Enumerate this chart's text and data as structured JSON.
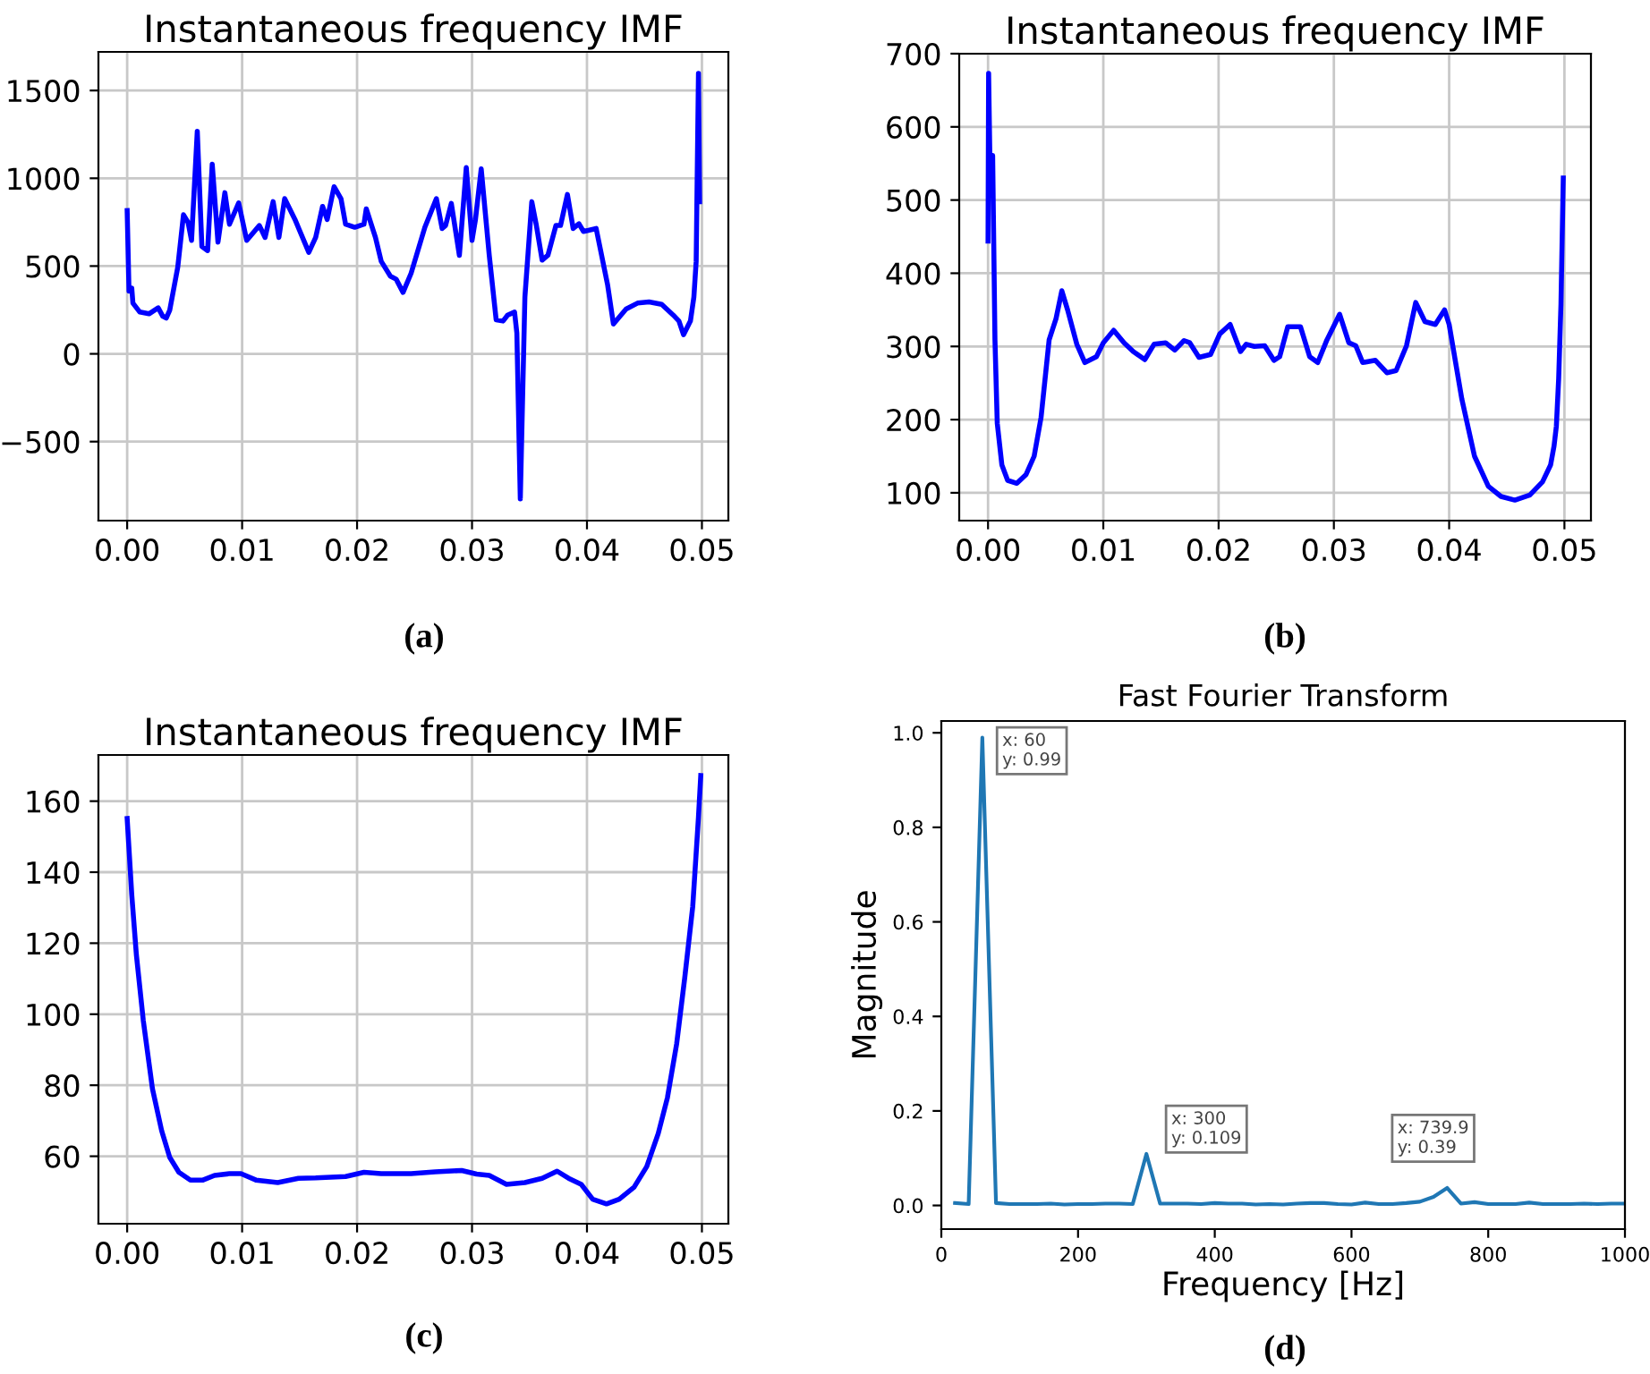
{
  "chart_data": [
    {
      "type": "line",
      "title": "Instantaneous frequency IMF",
      "annotations": [
        "(a)"
      ],
      "grid": true,
      "xlim": [
        -0.0025,
        0.0523
      ],
      "ylim": [
        -950,
        1720
      ],
      "xticks": [
        {
          "value": 0,
          "label": "0.00"
        },
        {
          "value": 0.01,
          "label": "0.01"
        },
        {
          "value": 0.02,
          "label": "0.02"
        },
        {
          "value": 0.03,
          "label": "0.03"
        },
        {
          "value": 0.04,
          "label": "0.04"
        },
        {
          "value": 0.05,
          "label": "0.05"
        }
      ],
      "yticks": [
        {
          "value": -500,
          "label": "−500"
        },
        0,
        500,
        1000,
        1500
      ],
      "series": [
        {
          "color": "#0000ff",
          "x": [
            0,
            0.00016,
            0.0004,
            0.0005,
            0.0011,
            0.0019,
            0.0027,
            0.0031,
            0.0034,
            0.0037,
            0.0044,
            0.0049,
            0.0053,
            0.0056,
            0.0061,
            0.0065,
            0.007,
            0.0074,
            0.0079,
            0.0085,
            0.0089,
            0.0097,
            0.0104,
            0.0115,
            0.012,
            0.0127,
            0.0132,
            0.0137,
            0.0146,
            0.0158,
            0.0164,
            0.017,
            0.0174,
            0.018,
            0.0186,
            0.019,
            0.0198,
            0.0206,
            0.0208,
            0.0216,
            0.0221,
            0.0229,
            0.0234,
            0.024,
            0.0247,
            0.0259,
            0.0269,
            0.0274,
            0.0277,
            0.0282,
            0.0289,
            0.0295,
            0.03,
            0.0303,
            0.0308,
            0.0315,
            0.0321,
            0.0327,
            0.0331,
            0.0337,
            0.0339,
            0.0342,
            0.0346,
            0.0352,
            0.0356,
            0.0361,
            0.0366,
            0.0373,
            0.0377,
            0.0383,
            0.0388,
            0.0393,
            0.0397,
            0.0408,
            0.0418,
            0.0423,
            0.0434,
            0.0444,
            0.0454,
            0.0465,
            0.0475,
            0.048,
            0.0484,
            0.049,
            0.0493,
            0.0495,
            0.0497,
            0.0498
          ],
          "values": [
            816,
            357,
            374,
            289,
            238,
            228,
            262,
            214,
            204,
            248,
            493,
            792,
            748,
            646,
            1268,
            612,
            588,
            1081,
            636,
            918,
            738,
            860,
            646,
            731,
            663,
            867,
            663,
            884,
            765,
            578,
            663,
            840,
            765,
            952,
            884,
            738,
            721,
            738,
            826,
            663,
            527,
            442,
            425,
            350,
            459,
            721,
            884,
            714,
            731,
            857,
            561,
            1061,
            646,
            765,
            1054,
            561,
            194,
            187,
            221,
            238,
            119,
            -826,
            323,
            867,
            731,
            534,
            561,
            731,
            731,
            908,
            714,
            741,
            697,
            714,
            391,
            170,
            255,
            289,
            296,
            282,
            221,
            187,
            109,
            187,
            323,
            527,
            1598,
            867
          ]
        }
      ]
    },
    {
      "type": "line",
      "title": "Instantaneous frequency IMF",
      "annotations": [
        "(b)"
      ],
      "grid": true,
      "xlim": [
        -0.0025,
        0.0523
      ],
      "ylim": [
        62,
        700
      ],
      "xticks": [
        {
          "value": 0,
          "label": "0.00"
        },
        {
          "value": 0.01,
          "label": "0.01"
        },
        {
          "value": 0.02,
          "label": "0.02"
        },
        {
          "value": 0.03,
          "label": "0.03"
        },
        {
          "value": 0.04,
          "label": "0.04"
        },
        {
          "value": 0.05,
          "label": "0.05"
        }
      ],
      "yticks": [
        100,
        200,
        300,
        400,
        500,
        600,
        700
      ],
      "series": [
        {
          "color": "#0000ff",
          "x": [
            0,
            5e-05,
            0.0002,
            0.0004,
            0.0006,
            0.0008,
            0.0012,
            0.0017,
            0.0025,
            0.0033,
            0.004,
            0.0046,
            0.0053,
            0.0059,
            0.0064,
            0.0069,
            0.0077,
            0.0084,
            0.0094,
            0.01,
            0.0109,
            0.0118,
            0.0126,
            0.0136,
            0.0144,
            0.0154,
            0.0162,
            0.017,
            0.0175,
            0.0183,
            0.0193,
            0.0201,
            0.021,
            0.0219,
            0.0224,
            0.0231,
            0.024,
            0.0248,
            0.0253,
            0.026,
            0.0271,
            0.0279,
            0.0286,
            0.0294,
            0.0305,
            0.0313,
            0.0319,
            0.0325,
            0.0336,
            0.0346,
            0.0354,
            0.0363,
            0.0371,
            0.0379,
            0.0388,
            0.0396,
            0.04,
            0.0411,
            0.0422,
            0.0434,
            0.0445,
            0.0457,
            0.047,
            0.0481,
            0.0488,
            0.0491,
            0.0493,
            0.0495,
            0.0497,
            0.0499
          ],
          "values": [
            444,
            673,
            514,
            561,
            309,
            195,
            138,
            117,
            113,
            125,
            150,
            203,
            309,
            338,
            376,
            350,
            303,
            278,
            286,
            305,
            322,
            305,
            293,
            282,
            303,
            305,
            295,
            308,
            305,
            285,
            289,
            317,
            330,
            293,
            303,
            300,
            301,
            281,
            286,
            327,
            327,
            286,
            278,
            309,
            344,
            305,
            301,
            278,
            281,
            264,
            267,
            301,
            360,
            334,
            330,
            350,
            330,
            228,
            150,
            109,
            95,
            90,
            97,
            115,
            138,
            164,
            191,
            256,
            358,
            530
          ]
        }
      ]
    },
    {
      "type": "line",
      "title": "Instantaneous frequency IMF",
      "annotations": [
        "(c)"
      ],
      "grid": true,
      "xlim": [
        -0.0025,
        0.0523
      ],
      "ylim": [
        41,
        173
      ],
      "xticks": [
        {
          "value": 0,
          "label": "0.00"
        },
        {
          "value": 0.01,
          "label": "0.01"
        },
        {
          "value": 0.02,
          "label": "0.02"
        },
        {
          "value": 0.03,
          "label": "0.03"
        },
        {
          "value": 0.04,
          "label": "0.04"
        },
        {
          "value": 0.05,
          "label": "0.05"
        }
      ],
      "yticks": [
        60,
        80,
        100,
        120,
        140,
        160
      ],
      "series": [
        {
          "color": "#0000ff",
          "x": [
            0,
            0.0004,
            0.0008,
            0.0014,
            0.0022,
            0.003,
            0.0037,
            0.0045,
            0.0055,
            0.0066,
            0.0076,
            0.0089,
            0.0099,
            0.0112,
            0.0131,
            0.0149,
            0.0164,
            0.019,
            0.0206,
            0.0221,
            0.0247,
            0.0268,
            0.0291,
            0.0304,
            0.0315,
            0.033,
            0.0346,
            0.0361,
            0.0374,
            0.0384,
            0.0395,
            0.0405,
            0.0417,
            0.0428,
            0.0441,
            0.0452,
            0.0462,
            0.047,
            0.0478,
            0.0485,
            0.0492,
            0.0497,
            0.0499
          ],
          "values": [
            155.1,
            133.6,
            116.8,
            98.3,
            79.0,
            67.2,
            59.7,
            55.5,
            53.3,
            53.3,
            54.6,
            55.1,
            55.1,
            53.3,
            52.6,
            53.8,
            53.9,
            54.3,
            55.5,
            55.1,
            55.1,
            55.6,
            56.0,
            55.0,
            54.6,
            52.1,
            52.6,
            53.8,
            55.8,
            53.8,
            52.1,
            47.9,
            46.6,
            47.9,
            51.3,
            57.1,
            66.4,
            76.5,
            91.6,
            110.1,
            130.3,
            155.5,
            167.2
          ]
        }
      ]
    },
    {
      "type": "line",
      "title": "Fast Fourier Transform",
      "xlabel": "Frequency [Hz]",
      "ylabel": "Magnitude",
      "grid": false,
      "xlim": [
        0,
        1000
      ],
      "ylim": [
        -0.05,
        1.025
      ],
      "xticks": [
        0,
        200,
        400,
        600,
        800,
        1000
      ],
      "yticks": [
        {
          "value": 0,
          "label": "0.0"
        },
        {
          "value": 0.2,
          "label": "0.2"
        },
        {
          "value": 0.4,
          "label": "0.4"
        },
        {
          "value": 0.6,
          "label": "0.6"
        },
        {
          "value": 0.8,
          "label": "0.8"
        },
        {
          "value": 1,
          "label": "1.0"
        }
      ],
      "annotations": [
        {
          "text": "x: 60\ny: 0.99",
          "x": 60,
          "y": 0.99
        },
        {
          "text": "x: 300\ny: 0.109",
          "x": 300,
          "y": 0.109
        },
        {
          "text": "x: 739.9\ny: 0.39",
          "x": 739.9,
          "y": 0.037
        },
        "(d)"
      ],
      "series": [
        {
          "color": "#1f77b4",
          "x": [
            20,
            40,
            60,
            80,
            100,
            120,
            140,
            160,
            180,
            200,
            220,
            240,
            260,
            280,
            300,
            320,
            340,
            360,
            380,
            400,
            420,
            440,
            460,
            480,
            500,
            520,
            540,
            560,
            580,
            600,
            620,
            640,
            660,
            680,
            700,
            720,
            740,
            760,
            780,
            800,
            820,
            840,
            860,
            880,
            900,
            920,
            940,
            960,
            980,
            1000
          ],
          "values": [
            0.005,
            0.003,
            0.99,
            0.005,
            0.003,
            0.003,
            0.003,
            0.004,
            0.002,
            0.003,
            0.003,
            0.004,
            0.004,
            0.003,
            0.109,
            0.004,
            0.004,
            0.004,
            0.003,
            0.005,
            0.004,
            0.004,
            0.002,
            0.003,
            0.002,
            0.004,
            0.005,
            0.005,
            0.003,
            0.002,
            0.006,
            0.003,
            0.003,
            0.005,
            0.008,
            0.018,
            0.037,
            0.004,
            0.007,
            0.003,
            0.003,
            0.003,
            0.006,
            0.003,
            0.003,
            0.003,
            0.004,
            0.003,
            0.004,
            0.004
          ]
        }
      ]
    }
  ]
}
